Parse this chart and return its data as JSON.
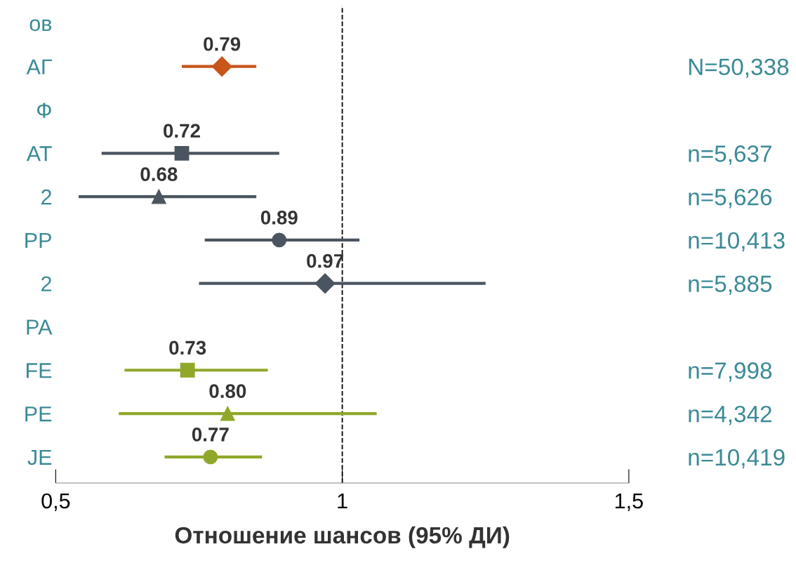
{
  "chart_data": {
    "type": "scatter",
    "orientation": "horizontal",
    "xlabel": "Отношение шансов (95% ДИ)",
    "xlim": [
      0.5,
      1.5
    ],
    "xticks": [
      {
        "value": 0.5,
        "label": "0,5"
      },
      1,
      {
        "value": 1.5,
        "label": "1,5"
      }
    ],
    "categories": [
      "ов",
      "АГ",
      "Ф",
      "AT",
      "2",
      "PP",
      "2",
      "PA",
      "FE",
      "PE",
      "JE"
    ],
    "y2_categories": [
      null,
      "N=50,338",
      null,
      "n=5,637",
      "n=5,626",
      "n=10,413",
      "n=5,885",
      null,
      "n=7,998",
      "n=4,342",
      "n=10,419"
    ],
    "grid": false,
    "ref_lines": [
      {
        "axis": "x",
        "value": 1,
        "color": "#000000",
        "line_style": "dashed"
      }
    ],
    "series": [
      {
        "color": "#c8561a",
        "marker": "diamond",
        "values": [
          null,
          0.79,
          null,
          null,
          null,
          null,
          null,
          null,
          null,
          null,
          null
        ],
        "errors": [
          null,
          [
            0.72,
            0.85
          ],
          null,
          null,
          null,
          null,
          null,
          null,
          null,
          null,
          null
        ],
        "value_labels": [
          null,
          "0.79",
          null,
          null,
          null,
          null,
          null,
          null,
          null,
          null,
          null
        ]
      },
      {
        "color": "#4a5560",
        "marker": "square",
        "values": [
          null,
          null,
          null,
          0.72,
          null,
          null,
          null,
          null,
          null,
          null,
          null
        ],
        "errors": [
          null,
          null,
          null,
          [
            0.58,
            0.89
          ],
          null,
          null,
          null,
          null,
          null,
          null,
          null
        ],
        "value_labels": [
          null,
          null,
          null,
          "0.72",
          null,
          null,
          null,
          null,
          null,
          null,
          null
        ]
      },
      {
        "color": "#4a5560",
        "marker": "triangle",
        "values": [
          null,
          null,
          null,
          null,
          0.68,
          null,
          null,
          null,
          null,
          null,
          null
        ],
        "errors": [
          null,
          null,
          null,
          null,
          [
            0.54,
            0.85
          ],
          null,
          null,
          null,
          null,
          null,
          null
        ],
        "value_labels": [
          null,
          null,
          null,
          null,
          "0.68",
          null,
          null,
          null,
          null,
          null,
          null
        ]
      },
      {
        "color": "#4a5560",
        "marker": "circle",
        "values": [
          null,
          null,
          null,
          null,
          null,
          0.89,
          null,
          null,
          null,
          null,
          null
        ],
        "errors": [
          null,
          null,
          null,
          null,
          null,
          [
            0.76,
            1.03
          ],
          null,
          null,
          null,
          null,
          null
        ],
        "value_labels": [
          null,
          null,
          null,
          null,
          null,
          "0.89",
          null,
          null,
          null,
          null,
          null
        ]
      },
      {
        "color": "#4a5560",
        "marker": "diamond",
        "values": [
          null,
          null,
          null,
          null,
          null,
          null,
          0.97,
          null,
          null,
          null,
          null
        ],
        "errors": [
          null,
          null,
          null,
          null,
          null,
          null,
          [
            0.75,
            1.25
          ],
          null,
          null,
          null,
          null
        ],
        "value_labels": [
          null,
          null,
          null,
          null,
          null,
          null,
          "0.97",
          null,
          null,
          null,
          null
        ]
      },
      {
        "color": "#8fa82a",
        "marker": "square",
        "values": [
          null,
          null,
          null,
          null,
          null,
          null,
          null,
          null,
          0.73,
          null,
          null
        ],
        "errors": [
          null,
          null,
          null,
          null,
          null,
          null,
          null,
          null,
          [
            0.62,
            0.87
          ],
          null,
          null
        ],
        "value_labels": [
          null,
          null,
          null,
          null,
          null,
          null,
          null,
          null,
          "0.73",
          null,
          null
        ]
      },
      {
        "color": "#8fa82a",
        "marker": "triangle",
        "values": [
          null,
          null,
          null,
          null,
          null,
          null,
          null,
          null,
          null,
          0.8,
          null
        ],
        "errors": [
          null,
          null,
          null,
          null,
          null,
          null,
          null,
          null,
          null,
          [
            0.61,
            1.06
          ],
          null
        ],
        "value_labels": [
          null,
          null,
          null,
          null,
          null,
          null,
          null,
          null,
          null,
          "0.80",
          null
        ]
      },
      {
        "color": "#8fa82a",
        "marker": "circle",
        "values": [
          null,
          null,
          null,
          null,
          null,
          null,
          null,
          null,
          null,
          null,
          0.77
        ],
        "errors": [
          null,
          null,
          null,
          null,
          null,
          null,
          null,
          null,
          null,
          null,
          [
            0.69,
            0.86
          ]
        ],
        "value_labels": [
          null,
          null,
          null,
          null,
          null,
          null,
          null,
          null,
          null,
          null,
          "0.77"
        ]
      }
    ]
  }
}
